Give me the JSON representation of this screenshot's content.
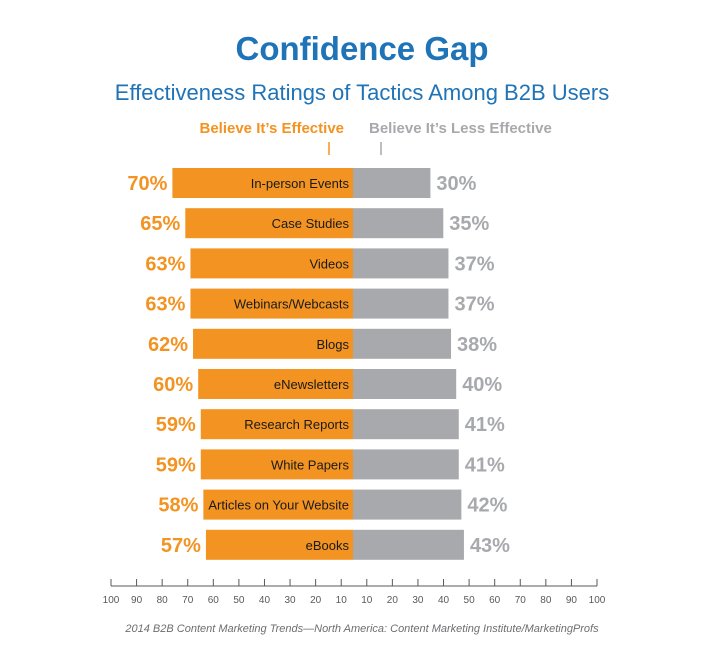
{
  "header": {
    "title": "Confidence Gap",
    "subtitle": "Effectiveness Ratings of Tactics Among B2B Users"
  },
  "legend": {
    "left": "Believe It’s Effective",
    "right": "Believe It’s Less Effective"
  },
  "source": "2014 B2B Content Marketing Trends—North America: Content Marketing Institute/MarketingProfs",
  "colors": {
    "effective": "#f39321",
    "less_effective": "#a7a9ac",
    "title": "#1f73b7"
  },
  "chart_data": {
    "type": "bar",
    "orientation": "horizontal-diverging",
    "title": "Confidence Gap",
    "subtitle": "Effectiveness Ratings of Tactics Among B2B Users",
    "categories": [
      "In-person Events",
      "Case Studies",
      "Videos",
      "Webinars/Webcasts",
      "Blogs",
      "eNewsletters",
      "Research Reports",
      "White Papers",
      "Articles on Your Website",
      "eBooks"
    ],
    "series": [
      {
        "name": "Believe It’s Effective",
        "values": [
          70,
          65,
          63,
          63,
          62,
          60,
          59,
          59,
          58,
          57
        ],
        "direction": "left"
      },
      {
        "name": "Believe It’s Less Effective",
        "values": [
          30,
          35,
          37,
          37,
          38,
          40,
          41,
          41,
          42,
          43
        ],
        "direction": "right"
      }
    ],
    "value_suffix": "%",
    "axis": {
      "left_ticks": [
        100,
        90,
        80,
        70,
        60,
        50,
        40,
        30,
        20,
        10
      ],
      "right_ticks": [
        10,
        20,
        30,
        40,
        50,
        60,
        70,
        80,
        90,
        100
      ],
      "range": [
        0,
        100
      ]
    },
    "legend_placement": "top",
    "grid": false
  }
}
